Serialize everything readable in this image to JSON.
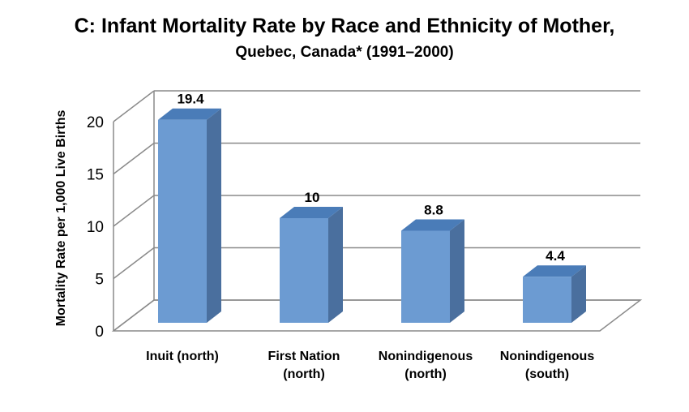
{
  "chart_data": {
    "type": "bar",
    "title": "C: Infant Mortality Rate by Race and Ethnicity of Mother,",
    "subtitle": "Quebec, Canada* (1991–2000)",
    "ylabel": "Mortality Rate per 1,000 Live Births",
    "xlabel": "",
    "ylim": [
      0,
      20
    ],
    "yticks": [
      "0",
      "5",
      "10",
      "15",
      "20"
    ],
    "categories": [
      [
        "Inuit (north)"
      ],
      [
        "First Nation",
        "(north)"
      ],
      [
        "Nonindigenous",
        "(north)"
      ],
      [
        "Nonindigenous",
        "(south)"
      ]
    ],
    "values": [
      19.4,
      10,
      8.8,
      4.4
    ],
    "data_labels": [
      "19.4",
      "10",
      "8.8",
      "4.4"
    ],
    "grid": true,
    "legend": "none",
    "style": "3d-column",
    "colors": {
      "bar_front": "#6c9bd2",
      "bar_side": "#4a6f9e",
      "bar_top": "#4a7cb8"
    }
  }
}
